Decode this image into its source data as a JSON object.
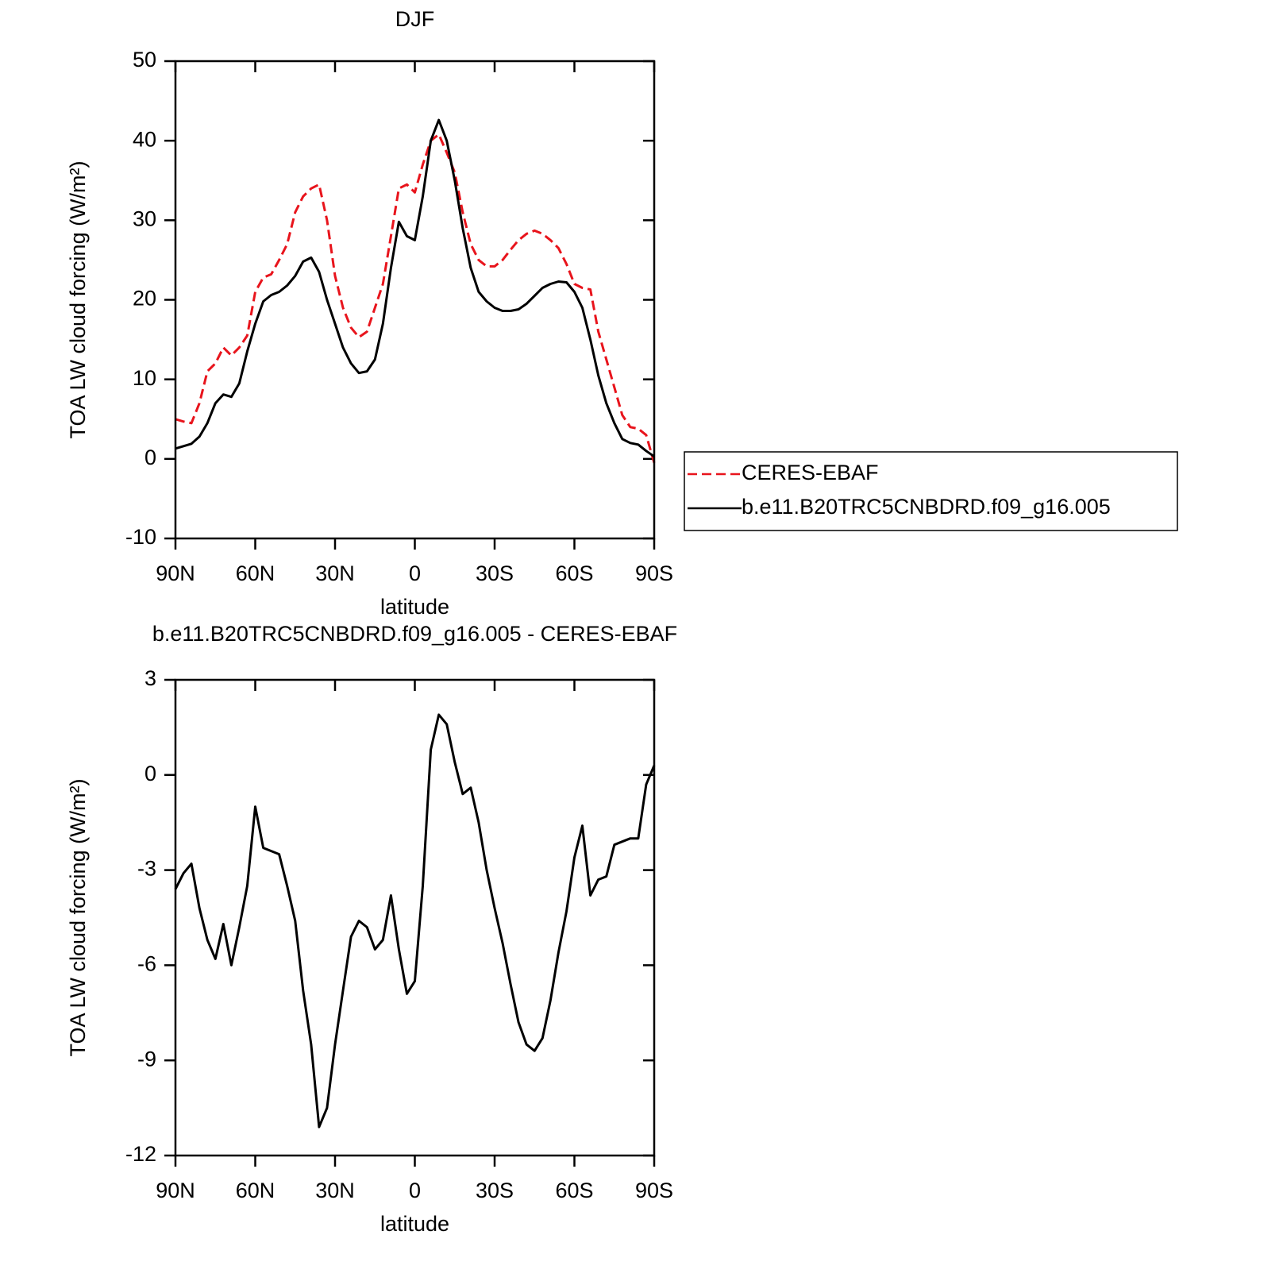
{
  "chart_data": [
    {
      "type": "line",
      "title": "DJF",
      "xlabel": "latitude",
      "ylabel": "TOA LW cloud forcing (W/m²)",
      "x": [
        90,
        87,
        84,
        81,
        78,
        75,
        72,
        69,
        66,
        63,
        60,
        57,
        54,
        51,
        48,
        45,
        42,
        39,
        36,
        33,
        30,
        27,
        24,
        21,
        18,
        15,
        12,
        9,
        6,
        3,
        0,
        -3,
        -6,
        -9,
        -12,
        -15,
        -18,
        -21,
        -24,
        -27,
        -30,
        -33,
        -36,
        -39,
        -42,
        -45,
        -48,
        -51,
        -54,
        -57,
        -60,
        -63,
        -66,
        -69,
        -72,
        -75,
        -78,
        -81,
        -84,
        -87,
        -90
      ],
      "series": [
        {
          "name": "CERES-EBAF",
          "color": "#e8141c",
          "linestyle": "dashed",
          "values": [
            5,
            4.7,
            4.5,
            7,
            11,
            12,
            14,
            13,
            14,
            15.5,
            21,
            22.8,
            23.2,
            25,
            27,
            31,
            33,
            34,
            34.5,
            30,
            23,
            19,
            16.5,
            15.3,
            16,
            19,
            22,
            28,
            34,
            34.5,
            33.5,
            37,
            40,
            40.8,
            38.5,
            36,
            31,
            27,
            25,
            24.2,
            24.2,
            25,
            26.3,
            27.5,
            28.3,
            28.7,
            28.3,
            27.5,
            26.5,
            24.5,
            22,
            21.5,
            21.3,
            16,
            12.5,
            9,
            5.5,
            4,
            3.8,
            3,
            -0.5
          ]
        },
        {
          "name": "b.e11.B20TRC5CNBDRD.f09_g16.005",
          "color": "#000000",
          "linestyle": "solid",
          "values": [
            1.3,
            1.6,
            1.9,
            2.8,
            4.5,
            7,
            8.1,
            7.8,
            9.5,
            13.5,
            17,
            19.8,
            20.6,
            21,
            21.8,
            23,
            24.8,
            25.3,
            23.5,
            20,
            17,
            14,
            12,
            10.8,
            11,
            12.5,
            17,
            24,
            29.8,
            28,
            27.5,
            33,
            40,
            42.6,
            40,
            35,
            29,
            24,
            21,
            19.8,
            19,
            18.6,
            18.6,
            18.8,
            19.5,
            20.5,
            21.5,
            22,
            22.3,
            22.2,
            21,
            19,
            15,
            10.5,
            7,
            4.5,
            2.5,
            2,
            1.8,
            1,
            0.3
          ]
        }
      ],
      "xlim": [
        90,
        -90
      ],
      "xticks": [
        {
          "value": 90,
          "label": "90N"
        },
        {
          "value": 60,
          "label": "60N"
        },
        {
          "value": 30,
          "label": "30N"
        },
        0,
        {
          "value": -30,
          "label": "30S"
        },
        {
          "value": -60,
          "label": "60S"
        },
        {
          "value": -90,
          "label": "90S"
        }
      ],
      "ylim": [
        -10,
        50
      ],
      "yticks": [
        -10,
        0,
        10,
        20,
        30,
        40,
        50
      ],
      "legend": "right"
    },
    {
      "type": "line",
      "title": "b.e11.B20TRC5CNBDRD.f09_g16.005 - CERES-EBAF",
      "xlabel": "latitude",
      "ylabel": "TOA LW cloud forcing (W/m²)",
      "x": [
        90,
        87,
        84,
        81,
        78,
        75,
        72,
        69,
        66,
        63,
        60,
        57,
        54,
        51,
        48,
        45,
        42,
        39,
        36,
        33,
        30,
        27,
        24,
        21,
        18,
        15,
        12,
        9,
        6,
        3,
        0,
        -3,
        -6,
        -9,
        -12,
        -15,
        -18,
        -21,
        -24,
        -27,
        -30,
        -33,
        -36,
        -39,
        -42,
        -45,
        -48,
        -51,
        -54,
        -57,
        -60,
        -63,
        -66,
        -69,
        -72,
        -75,
        -78,
        -81,
        -84,
        -87,
        -90
      ],
      "series": [
        {
          "color": "#000000",
          "linestyle": "solid",
          "values": [
            -3.6,
            -3.1,
            -2.8,
            -4.2,
            -5.2,
            -5.8,
            -4.7,
            -6,
            -4.8,
            -3.5,
            -1.0,
            -2.3,
            -2.4,
            -2.5,
            -3.5,
            -4.6,
            -6.8,
            -8.5,
            -11.1,
            -10.5,
            -8.5,
            -6.8,
            -5.1,
            -4.6,
            -4.8,
            -5.5,
            -5.2,
            -3.8,
            -5.5,
            -6.9,
            -6.5,
            -3.5,
            0.8,
            1.9,
            1.6,
            0.4,
            -0.6,
            -0.4,
            -1.5,
            -3,
            -4.2,
            -5.3,
            -6.6,
            -7.8,
            -8.5,
            -8.7,
            -8.3,
            -7.1,
            -5.6,
            -4.3,
            -2.6,
            -1.6,
            -3.8,
            -3.3,
            -3.2,
            -2.2,
            -2.1,
            -2,
            -2,
            -0.3,
            0.3
          ]
        }
      ],
      "xlim": [
        90,
        -90
      ],
      "xticks": [
        {
          "value": 90,
          "label": "90N"
        },
        {
          "value": 60,
          "label": "60N"
        },
        {
          "value": 30,
          "label": "30N"
        },
        0,
        {
          "value": -30,
          "label": "30S"
        },
        {
          "value": -60,
          "label": "60S"
        },
        {
          "value": -90,
          "label": "90S"
        }
      ],
      "ylim": [
        -12,
        3
      ],
      "yticks": [
        -12,
        -9,
        -6,
        -3,
        0,
        3
      ]
    }
  ]
}
